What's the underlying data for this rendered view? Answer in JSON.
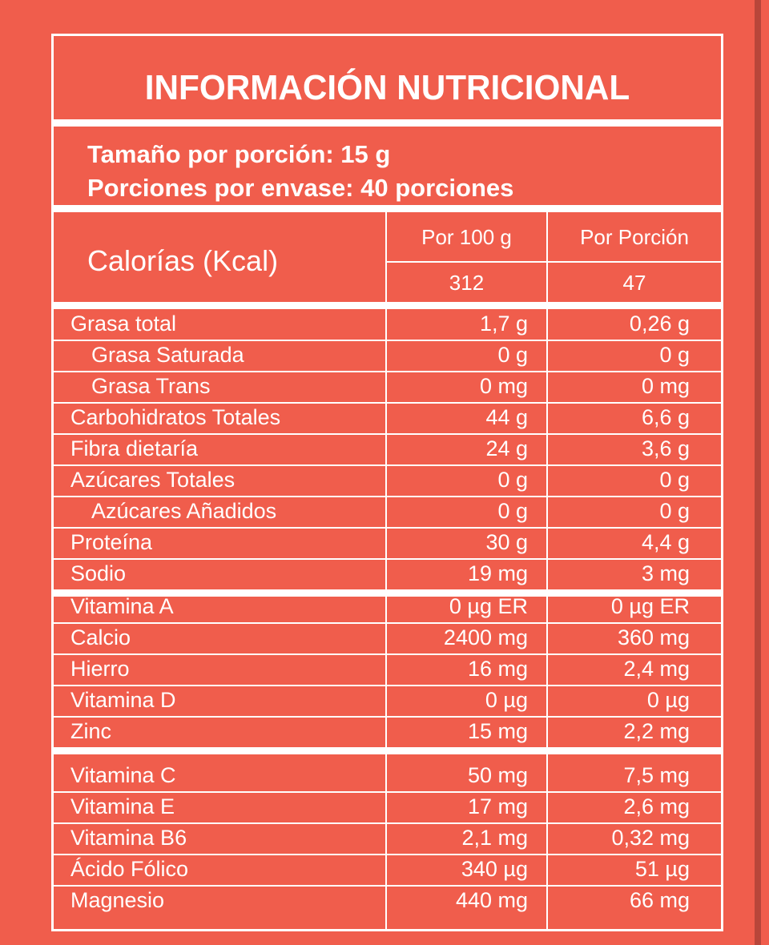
{
  "title": "INFORMACIÓN NUTRICIONAL",
  "serving": {
    "size": "Tamaño por porción: 15 g",
    "per_container": "Porciones por envase: 40 porciones"
  },
  "calories": {
    "label": "Calorías (Kcal)",
    "col1_header": "Por 100 g",
    "col2_header": "Por Porción",
    "per100": "312",
    "per_portion": "47"
  },
  "colors": {
    "background": "#F05D4C",
    "lines": "#FFFFFF",
    "edge_stripe": "#B8463A"
  },
  "sections": [
    {
      "rows": [
        {
          "label": "Grasa total",
          "indent": false,
          "per100": "1,7 g",
          "per_portion": "0,26 g"
        },
        {
          "label": "Grasa Saturada",
          "indent": true,
          "per100": "0 g",
          "per_portion": "0 g"
        },
        {
          "label": "Grasa Trans",
          "indent": true,
          "per100": "0 mg",
          "per_portion": "0 mg"
        },
        {
          "label": "Carbohidratos Totales",
          "indent": false,
          "per100": "44 g",
          "per_portion": "6,6 g"
        },
        {
          "label": "Fibra dietaría",
          "indent": false,
          "per100": "24 g",
          "per_portion": "3,6 g"
        },
        {
          "label": "Azúcares Totales",
          "indent": false,
          "per100": "0 g",
          "per_portion": "0 g"
        },
        {
          "label": "Azúcares Añadidos",
          "indent": true,
          "per100": "0 g",
          "per_portion": "0 g"
        },
        {
          "label": "Proteína",
          "indent": false,
          "per100": "30 g",
          "per_portion": "4,4 g"
        },
        {
          "label": "Sodio",
          "indent": false,
          "per100": "19 mg",
          "per_portion": "3 mg"
        }
      ]
    },
    {
      "rows": [
        {
          "label": "Vitamina A",
          "indent": false,
          "per100": "0 µg ER",
          "per_portion": "0 µg ER"
        },
        {
          "label": "Calcio",
          "indent": false,
          "per100": "2400 mg",
          "per_portion": "360 mg"
        },
        {
          "label": "Hierro",
          "indent": false,
          "per100": "16 mg",
          "per_portion": "2,4 mg"
        },
        {
          "label": "Vitamina D",
          "indent": false,
          "per100": "0 µg",
          "per_portion": "0 µg"
        },
        {
          "label": "Zinc",
          "indent": false,
          "per100": "15 mg",
          "per_portion": "2,2 mg"
        }
      ]
    },
    {
      "rows": [
        {
          "label": "Vitamina C",
          "indent": false,
          "per100": "50 mg",
          "per_portion": "7,5 mg"
        },
        {
          "label": "Vitamina E",
          "indent": false,
          "per100": "17 mg",
          "per_portion": "2,6 mg"
        },
        {
          "label": "Vitamina B6",
          "indent": false,
          "per100": "2,1 mg",
          "per_portion": "0,32 mg"
        },
        {
          "label": "Ácido Fólico",
          "indent": false,
          "per100": "340 µg",
          "per_portion": "51 µg"
        },
        {
          "label": "Magnesio",
          "indent": false,
          "per100": "440 mg",
          "per_portion": "66 mg"
        }
      ]
    }
  ]
}
